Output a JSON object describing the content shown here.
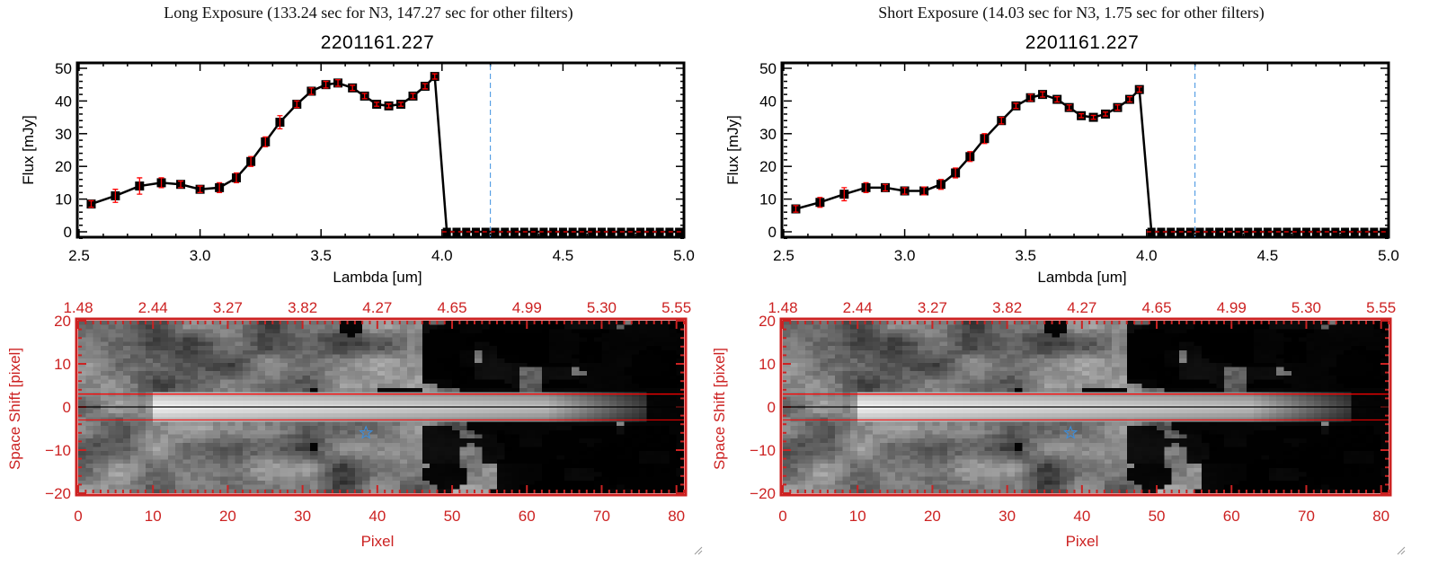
{
  "panels": [
    {
      "title": "Long Exposure (133.24 sec for N3, 147.27 sec for other filters)",
      "object_id": "2201161.227"
    },
    {
      "title": "Short Exposure (14.03 sec for N3, 1.75 sec for other filters)",
      "object_id": "2201161.227"
    }
  ],
  "colors": {
    "spectrum": "#000000",
    "error_bar": "#ff0000",
    "zero_line": "#ff0000",
    "cutoff_line": "#3a8fe0",
    "image_axes": "#cc2222",
    "aperture_lines": "#ff0000",
    "star_marker": "#3a8fe0"
  },
  "icons": {
    "resize_handle": "resize-grip-icon",
    "star": "star-icon"
  },
  "chart_data": [
    {
      "type": "line",
      "panel": 0,
      "title": "2201161.227",
      "xlabel": "Lambda [um]",
      "ylabel": "Flux [mJy]",
      "xlim": [
        2.5,
        5.0
      ],
      "ylim": [
        -2,
        51.5
      ],
      "xticks": [
        "2.5",
        "3.0",
        "3.5",
        "4.0",
        "4.5",
        "5.0"
      ],
      "yticks": [
        "0",
        "10",
        "20",
        "30",
        "40",
        "50"
      ],
      "cutoff_lambda": 4.2,
      "x": [
        2.55,
        2.65,
        2.75,
        2.84,
        2.92,
        3.0,
        3.08,
        3.15,
        3.21,
        3.27,
        3.33,
        3.4,
        3.46,
        3.52,
        3.57,
        3.63,
        3.68,
        3.73,
        3.78,
        3.83,
        3.88,
        3.93,
        3.97
      ],
      "y": [
        8.5,
        11,
        14,
        15,
        14.5,
        13,
        13.5,
        16.5,
        21.5,
        27.5,
        33.5,
        39,
        43,
        45,
        45.5,
        44,
        41.5,
        39,
        38.5,
        39,
        41.5,
        44.5,
        47.5
      ],
      "yerr": [
        1,
        2,
        2.5,
        1.5,
        1,
        1,
        1.5,
        1.5,
        1.5,
        1.5,
        2,
        1,
        1,
        1,
        1,
        0.8,
        0.8,
        0.6,
        0.6,
        0.6,
        0.8,
        0.8,
        0.8
      ],
      "zero_x": [
        4.02,
        4.06,
        4.1,
        4.14,
        4.18,
        4.22,
        4.26,
        4.3,
        4.34,
        4.38,
        4.42,
        4.46,
        4.5,
        4.54,
        4.58,
        4.62,
        4.66,
        4.7,
        4.74,
        4.78,
        4.82,
        4.86,
        4.9,
        4.94,
        4.98
      ]
    },
    {
      "type": "line",
      "panel": 1,
      "title": "2201161.227",
      "xlabel": "Lambda [um]",
      "ylabel": "Flux [mJy]",
      "xlim": [
        2.5,
        5.0
      ],
      "ylim": [
        -2,
        51.5
      ],
      "xticks": [
        "2.5",
        "3.0",
        "3.5",
        "4.0",
        "4.5",
        "5.0"
      ],
      "yticks": [
        "0",
        "10",
        "20",
        "30",
        "40",
        "50"
      ],
      "cutoff_lambda": 4.2,
      "x": [
        2.55,
        2.65,
        2.75,
        2.84,
        2.92,
        3.0,
        3.08,
        3.15,
        3.21,
        3.27,
        3.33,
        3.4,
        3.46,
        3.52,
        3.57,
        3.63,
        3.68,
        3.73,
        3.78,
        3.83,
        3.88,
        3.93,
        3.97
      ],
      "y": [
        7,
        9,
        11.5,
        13.5,
        13.5,
        12.5,
        12.5,
        14.5,
        18,
        23,
        28.5,
        34,
        38.5,
        41,
        42,
        40.5,
        38,
        35.5,
        35,
        36,
        38,
        40.5,
        43.5
      ],
      "yerr": [
        1,
        1.5,
        2,
        1.5,
        1,
        1,
        1.2,
        1.5,
        1.5,
        1.5,
        1.5,
        1,
        0.8,
        1,
        0.8,
        0.8,
        0.8,
        0.6,
        0.6,
        0.6,
        0.8,
        0.8,
        0.8
      ],
      "zero_x": [
        4.02,
        4.06,
        4.1,
        4.14,
        4.18,
        4.22,
        4.26,
        4.3,
        4.34,
        4.38,
        4.42,
        4.46,
        4.5,
        4.54,
        4.58,
        4.62,
        4.66,
        4.7,
        4.74,
        4.78,
        4.82,
        4.86,
        4.9,
        4.94,
        4.98
      ]
    },
    {
      "type": "heatmap",
      "panel": 0,
      "xlabel": "Pixel",
      "ylabel": "Space Shift [pixel]",
      "xlim": [
        0,
        81
      ],
      "ylim": [
        -20,
        20
      ],
      "xticks": [
        "0",
        "10",
        "20",
        "30",
        "40",
        "50",
        "60",
        "70",
        "80"
      ],
      "yticks": [
        "20",
        "10",
        "0",
        "-10",
        "-20"
      ],
      "top_axis_ticks": [
        "1.48",
        "2.44",
        "3.27",
        "3.82",
        "4.27",
        "4.65",
        "4.99",
        "5.30",
        "5.55"
      ],
      "aperture": [
        -3,
        3
      ],
      "center_line": 0,
      "star_marker": {
        "pixel": 38,
        "shift": -6
      },
      "colormap": "grayscale"
    },
    {
      "type": "heatmap",
      "panel": 1,
      "xlabel": "Pixel",
      "ylabel": "Space Shift [pixel]",
      "xlim": [
        0,
        81
      ],
      "ylim": [
        -20,
        20
      ],
      "xticks": [
        "0",
        "10",
        "20",
        "30",
        "40",
        "50",
        "60",
        "70",
        "80"
      ],
      "yticks": [
        "20",
        "10",
        "0",
        "-10",
        "-20"
      ],
      "top_axis_ticks": [
        "1.48",
        "2.44",
        "3.27",
        "3.82",
        "4.27",
        "4.65",
        "4.99",
        "5.30",
        "5.55"
      ],
      "aperture": [
        -3,
        3
      ],
      "center_line": 0,
      "star_marker": {
        "pixel": 38,
        "shift": -6
      },
      "colormap": "grayscale"
    }
  ]
}
